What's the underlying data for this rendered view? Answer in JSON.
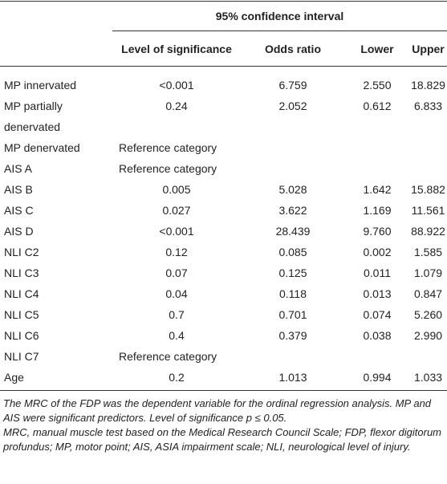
{
  "table": {
    "group_header": "95% confidence interval",
    "columns": [
      "",
      "Level of significance",
      "Odds ratio",
      "Lower",
      "Upper"
    ],
    "rows": [
      [
        "MP innervated",
        "<0.001",
        "6.759",
        "2.550",
        "18.829"
      ],
      [
        "MP partially denervated",
        "0.24",
        "2.052",
        "0.612",
        "6.833"
      ],
      [
        "MP denervated",
        "Reference category",
        "",
        "",
        ""
      ],
      [
        "AIS A",
        "Reference category",
        "",
        "",
        ""
      ],
      [
        "AIS B",
        "0.005",
        "5.028",
        "1.642",
        "15.882"
      ],
      [
        "AIS C",
        "0.027",
        "3.622",
        "1.169",
        "11.561"
      ],
      [
        "AIS D",
        "<0.001",
        "28.439",
        "9.760",
        "88.922"
      ],
      [
        "NLI C2",
        "0.12",
        "0.085",
        "0.002",
        "1.585"
      ],
      [
        "NLI C3",
        "0.07",
        "0.125",
        "0.011",
        "1.079"
      ],
      [
        "NLI C4",
        "0.04",
        "0.118",
        "0.013",
        "0.847"
      ],
      [
        "NLI C5",
        "0.7",
        "0.701",
        "0.074",
        "5.260"
      ],
      [
        "NLI C6",
        "0.4",
        "0.379",
        "0.038",
        "2.990"
      ],
      [
        "NLI C7",
        "Reference category",
        "",
        "",
        ""
      ],
      [
        "Age",
        "0.2",
        "1.013",
        "0.994",
        "1.033"
      ]
    ]
  },
  "footnotes": [
    "The MRC of the FDP was the dependent variable for the ordinal regression analysis. MP and AIS were significant predictors. Level of significance p ≤ 0.05.",
    "MRC, manual muscle test based on the Medical Research Council Scale; FDP, flexor digitorum profundus; MP, motor point; AIS, ASIA impairment scale; NLI, neurological level of injury."
  ]
}
